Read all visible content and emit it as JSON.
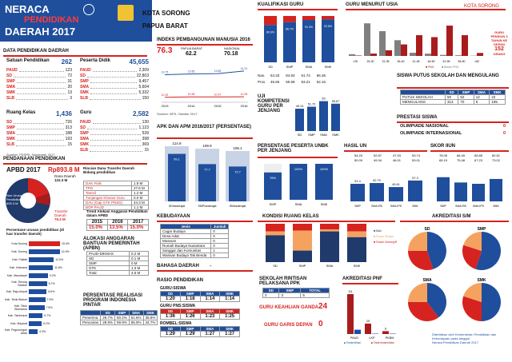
{
  "header": {
    "title1": "NERACA",
    "title2": "PENDIDIKAN",
    "title3": "DAERAH 2017",
    "region1": "KOTA SORONG",
    "region2": "PAPUA BARAT",
    "corner": "KOTA SORONG"
  },
  "colors": {
    "blue": "#1f4e9c",
    "red": "#d6231f",
    "darkred": "#a81c1c",
    "grey": "#7f7f7f",
    "orange": "#f5a260"
  },
  "data_pokok": {
    "title": "DATA PENDIDIKAN DAERAH",
    "satuan": {
      "label": "Satuan Pendidikan",
      "total": "262",
      "items": [
        [
          "PAUD",
          "123"
        ],
        [
          "SD",
          "72"
        ],
        [
          "SMP",
          "31"
        ],
        [
          "SMA",
          "20"
        ],
        [
          "SMK",
          "13"
        ],
        [
          "SLB",
          "3"
        ]
      ]
    },
    "peserta": {
      "label": "Peserta Didik",
      "total": "45,655",
      "items": [
        [
          "PAUD",
          "2,309"
        ],
        [
          "SD",
          "22,803"
        ],
        [
          "SMP",
          "9,457"
        ],
        [
          "SMA",
          "5,604"
        ],
        [
          "SMK",
          "5,332"
        ],
        [
          "SLB",
          "150"
        ]
      ]
    },
    "ruang": {
      "label": "Ruang Kelas",
      "total": "1,436",
      "items": [
        [
          "SD",
          "726"
        ],
        [
          "SMP",
          "313"
        ],
        [
          "SMA",
          "188"
        ],
        [
          "SMK",
          "193"
        ],
        [
          "SLB",
          "15"
        ]
      ]
    },
    "guru": {
      "label": "Guru",
      "total": "2,582",
      "items": [
        [
          "PAUD",
          "130"
        ],
        [
          "SD",
          "1,123"
        ],
        [
          "SMP",
          "539"
        ],
        [
          "SMA",
          "398"
        ],
        [
          "SMK",
          "369"
        ],
        [
          "SLB",
          "15"
        ]
      ]
    },
    "source": "Sumber: PDSPK, November 2017"
  },
  "pendanaan": {
    "title": "PENDANAAN PENDIDIKAN",
    "apbd": "APBD 2017",
    "apbd_val": "Rp893.8 M",
    "dana_daerah": "Dana Daerah",
    "dana_daerah_val": "122.3 M",
    "transfer": "Transfer Daerah",
    "transfer_val": "76.2 M",
    "nonurusan": "Non Urusan Pendidikan",
    "nonurusan_val": "695.3 M",
    "rincian_title": "Rincian Dana Transfer Daerah Bidang pendidikan",
    "rincian": [
      [
        "DAK Fisik",
        "1.9 M"
      ],
      [
        "TPG",
        "27.6 M"
      ],
      [
        "Tamsil",
        "1.2 M"
      ],
      [
        "Tunjangan Khusus Guru",
        "0.0 M"
      ],
      [
        "DAU (Gaji GTK PNSD)",
        "44.3 M"
      ],
      [
        "BOP PAUD",
        "1.1 M"
      ]
    ],
    "persen_title": "Persentase urusan pendidikan (di luar transfer daerah)",
    "persen": [
      [
        "Kota Sorong",
        "15.0%"
      ],
      [
        "Kab. Sorong",
        "14.9%"
      ],
      [
        "Kab. Fakfak",
        "12.0%"
      ],
      [
        "Kab. Kaimana",
        "11.6%"
      ],
      [
        "Kab. Manokwari",
        "9.2%"
      ],
      [
        "Kab. Sorong Selatan",
        "8.7%"
      ],
      [
        "Kab. Raja Ampat",
        "8.6%"
      ],
      [
        "Kab. Teluk Bintuni",
        "7.9%"
      ],
      [
        "Kab. Teluk Wondama",
        "7.5%"
      ],
      [
        "Kab. Tambrauw",
        "6.7%"
      ],
      [
        "Kab. Maybrat",
        "6.2%"
      ],
      [
        "Kab. Pegunungan Arfak",
        "4.3%"
      ]
    ],
    "trend_title": "Trend Alokasi Anggaran Pendidikan dalam APBD",
    "trend_years": [
      "2015",
      "2016",
      "2017"
    ],
    "trend_vals": [
      "15.0%",
      "13.5%",
      "15.0%"
    ],
    "bantuan_title": "ALOKASI ANGGARAN BANTUAN PEMERINTAH (APBN)",
    "bantuan": [
      [
        "PAUD-DIKMAS",
        "0.2 M"
      ],
      [
        "SD",
        "0.1 M"
      ],
      [
        "SMP",
        "0 M"
      ],
      [
        "GTK",
        "1.3 M"
      ],
      [
        "Total",
        "4.5 M"
      ]
    ],
    "realisasi_title": "PERSENTASE REALISASI PROGRAM INDONESIA PINTAR",
    "realisasi_head": [
      "",
      "SD",
      "SMP",
      "SMA",
      "SMK"
    ],
    "realisasi": [
      [
        "Penerima",
        "26.7%",
        "50.2%",
        "51.6%",
        "35.8%"
      ],
      [
        "Pencairan",
        "28.9%",
        "59.9%",
        "55.9%",
        "44.7%"
      ]
    ]
  },
  "ipm": {
    "title": "INDEKS PEMBANGUNAN MANUSIA 2016",
    "kota": "76.3",
    "papua_label": "PAPUA BARAT",
    "papua": "62.2",
    "nas_label": "NASIONAL",
    "nas": "70.18",
    "chart": {
      "years": [
        "2013",
        "2014",
        "2015",
        "2016"
      ],
      "hls": [
        13.75,
        13.85,
        13.89,
        14.21
      ],
      "rls": [
        10.92,
        10.98,
        10.97,
        10.99
      ],
      "l1": "Harapan Lama Sekolah",
      "l2": "Rata-rata Lama Sekolah"
    },
    "source": "Sumber: BPS, Oktober 2017"
  },
  "apk": {
    "title": "APK DAN APM 2016/2017 (persentase)",
    "cats": [
      "SD/sederajat",
      "SMP/sederajat",
      "SM/sederajat"
    ],
    "apk": [
      114.9,
      109.9,
      105.1
    ],
    "apm": [
      99.1,
      77.7,
      72.7
    ],
    "l1": "APK",
    "l2": "APM"
  },
  "kebudayaan": {
    "title": "KEBUDAYAAN",
    "head": [
      "Jenis",
      "Jumlah"
    ],
    "rows": [
      [
        "Cagar Budaya",
        "0"
      ],
      [
        "Desa Adat",
        "0"
      ],
      [
        "Museum",
        "0"
      ],
      [
        "Rumah Budaya Nusantara",
        "0"
      ],
      [
        "Sanggar dan Komunitas",
        "1"
      ],
      [
        "Warisan Budaya Tak Benda",
        "0"
      ]
    ]
  },
  "bahasa": {
    "title": "BAHASA DAERAH",
    "value": "-"
  },
  "rasio": {
    "title": "RASIO PENDIDIKAN",
    "g1": "GURU:SISWA",
    "g1h": [
      "SD",
      "SMP",
      "SMA",
      "SMK"
    ],
    "g1v": [
      "1:20",
      "1:18",
      "1:14",
      "1:14"
    ],
    "g2": "GURU PNS:SISWA",
    "g2h": [
      "SD",
      "SMP",
      "SMA",
      "SMK"
    ],
    "g2v": [
      "1:36",
      "1:26",
      "1:23",
      "1:25"
    ],
    "g3": "ROMBEL:SISWA",
    "g3h": [
      "SD",
      "SMP",
      "SMA",
      "SMK"
    ],
    "g3v": [
      "1:29",
      "1:29",
      "1:27",
      "1:27"
    ]
  },
  "kualifikasi": {
    "title": "KUALIFIKASI GURU",
    "cats": [
      "SD",
      "SMP",
      "SMA",
      "SMK"
    ],
    "s1": [
      80.6,
      86.7,
      91.3,
      92.8
    ],
    "no": [
      19.4,
      13.3,
      8.7,
      7.2
    ],
    "l1": "<S1/D4",
    "l2": "S1/D4",
    "nas_lbl": "Nas.",
    "nas": [
      "54.33",
      "84.93",
      "61.74",
      "66.36"
    ],
    "prov_lbl": "Prov.",
    "prov": [
      "46.66",
      "50.68",
      "53.21",
      "52.16"
    ]
  },
  "uji": {
    "title": "UJI KOMPETENSI GURU PER JENJANG",
    "cats": [
      "SD",
      "SMP",
      "SMA",
      "SMK"
    ],
    "vals": [
      49.13,
      51.72,
      59.0,
      55.67
    ],
    "l": "NILAI UKG 2015",
    "extra": "50.00"
  },
  "usia": {
    "title": "GURU MENURUT USIA",
    "cats": [
      "<26",
      "26-30",
      "31-35",
      "36-40",
      "41-45",
      "46-50",
      "51-55",
      "56-60",
      ">60"
    ],
    "pns": [
      5,
      27,
      64,
      131,
      236,
      214,
      345,
      236,
      34
    ],
    "non": [
      20,
      371,
      282,
      179,
      36,
      26,
      12,
      8,
      3
    ],
    "pensiun": "GURU PENSIUN 3 TAHUN KE DEPAN",
    "pensiun_val": "152",
    "pensiun_unit": "ORANG",
    "l1": "PNS",
    "l2": "Bukan PNS"
  },
  "putus": {
    "title": "SISWA PUTUS SEKOLAH DAN MENGULANG",
    "head": [
      "",
      "SD",
      "SMP",
      "SMA",
      "SMK"
    ],
    "rows": [
      [
        "PUTUS SEKOLAH",
        "50",
        "52",
        "12",
        "22"
      ],
      [
        "MENGULANG",
        "313",
        "70",
        "6",
        "195"
      ]
    ]
  },
  "prestasi": {
    "title": "PRESTASI SISWA",
    "rows": [
      [
        "OLIMPIADE NASIONAL",
        "0"
      ],
      [
        "OLIMPIADE INTERNASIONAL",
        "0"
      ]
    ]
  },
  "unbk": {
    "title": "PERSENTASE PESERTA UNBK PER JENJANG",
    "cats": [
      "SMP",
      "SMA",
      "SMK"
    ],
    "vals": [
      76,
      100,
      100
    ]
  },
  "hasil": {
    "title": "HASIL UN",
    "cats": [
      "SMP",
      "SMA IPA",
      "SMA IPS",
      "SMK"
    ],
    "vals": [
      51.4,
      52.79,
      45.61,
      57.3
    ],
    "kab": [
      "54.20",
      "52.87",
      "47.93",
      "53.74"
    ],
    "prov": [
      "50.09",
      "49.34",
      "46.01",
      "53.01"
    ],
    "l1": "2016",
    "l2": "2017"
  },
  "skor": {
    "title": "SKOR IIUN",
    "cats": [
      "SMP",
      "SMA IPA",
      "SMA IPS",
      "SMK"
    ],
    "vals": [
      75,
      63,
      60,
      71
    ],
    "kab": [
      "76.05",
      "66.49",
      "65.85",
      "82.61"
    ],
    "prov": [
      "65.19",
      "75.48",
      "67.23",
      "73.02"
    ]
  },
  "kondisi": {
    "title": "KONDISI RUANG KELAS",
    "cats": [
      "SD",
      "SMP",
      "SMA",
      "SMK"
    ],
    "baik": [
      70,
      30,
      80,
      65
    ],
    "rr": [
      10,
      52,
      5,
      15
    ],
    "rb": [
      20,
      18,
      15,
      20
    ],
    "l1": "Baik",
    "l2": "Rusak Ringan",
    "l3": "Rusak Sedang/Berat"
  },
  "akreditasi": {
    "title": "AKREDITASI S/M",
    "pies": [
      {
        "name": "SD",
        "vals": [
          45,
          30,
          25
        ]
      },
      {
        "name": "SMP",
        "vals": [
          55,
          25,
          20
        ]
      },
      {
        "name": "SMA",
        "vals": [
          40,
          35,
          25
        ]
      },
      {
        "name": "SMK",
        "vals": [
          50,
          30,
          20
        ]
      }
    ]
  },
  "rintisan": {
    "title": "SEKOLAH RINTISAN PELAKSANA PPK",
    "head": [
      "SD",
      "SMP",
      "TOTAL"
    ],
    "vals": [
      "2",
      "3",
      "5"
    ]
  },
  "keahlian": {
    "title": "GURU KEAHLIAN GANDA",
    "value": "24"
  },
  "garis": {
    "title": "GURU GARIS DEPAN",
    "value": "0"
  },
  "pnf": {
    "title": "AKREDITASI PNF",
    "cats": [
      "PAUD",
      "LKP",
      "PKBM"
    ],
    "akr": [
      12,
      1,
      0
    ],
    "not": [
      111,
      29,
      8
    ],
    "l1": "Terakreditasi",
    "l2": "Tidak terakreditasi"
  },
  "footer": "Diterbitkan oleh Kementerian Pendidikan dan Kebudayaan pada tanggal",
  "footer2": "Neraca Pendidikan Daerah 2017"
}
